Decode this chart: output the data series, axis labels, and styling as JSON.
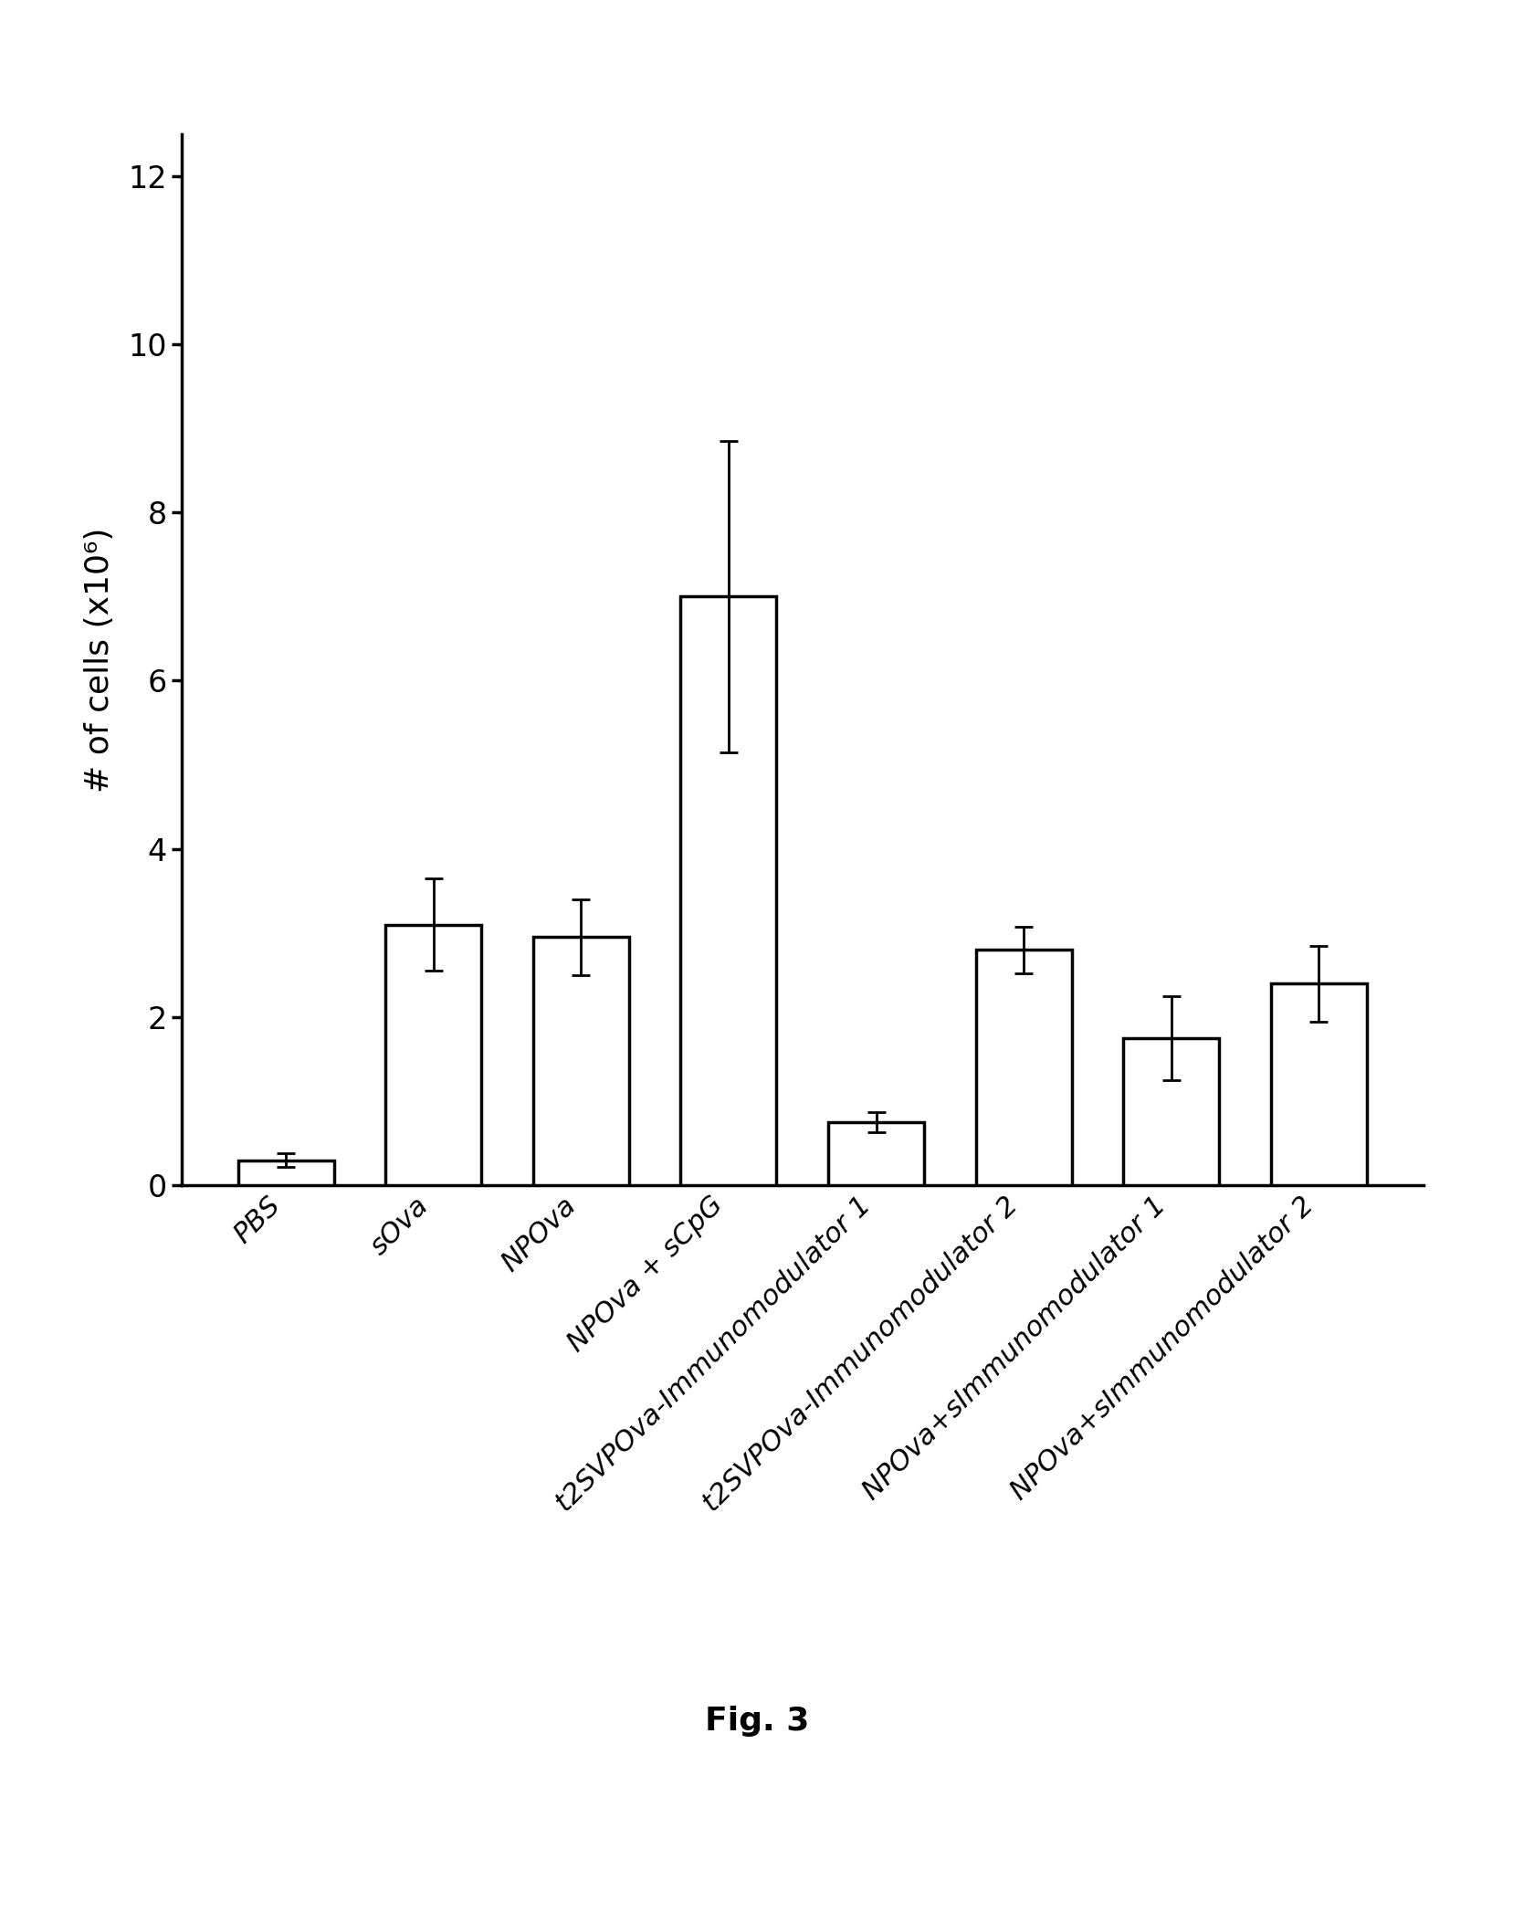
{
  "categories": [
    "PBS",
    "sOva",
    "NPOva",
    "NPOva + sCpG",
    "t2SVPOva-Immunomodulator 1",
    "t2SVPOva-Immunomodulator 2",
    "NPOva+sImmunomodulator 1",
    "NPOva+sImmunomodulator 2"
  ],
  "values": [
    0.3,
    3.1,
    2.95,
    7.0,
    0.75,
    2.8,
    1.75,
    2.4
  ],
  "errors": [
    0.08,
    0.55,
    0.45,
    1.85,
    0.12,
    0.28,
    0.5,
    0.45
  ],
  "bar_color": "#ffffff",
  "bar_edgecolor": "#000000",
  "bar_linewidth": 2.5,
  "error_color": "#000000",
  "error_linewidth": 2.0,
  "error_capsize": 7,
  "error_capthick": 2.0,
  "ylabel": "# of cells (x10⁶)",
  "ylabel_fontsize": 26,
  "yticks": [
    0,
    2,
    4,
    6,
    8,
    10,
    12
  ],
  "ylim": [
    0,
    12.5
  ],
  "ytick_fontsize": 24,
  "xtick_rotation": 45,
  "xtick_ha": "right",
  "xtick_fontsize": 22,
  "figure_caption": "Fig. 3",
  "caption_fontsize": 26,
  "background_color": "#ffffff",
  "bar_width": 0.65,
  "axis_linewidth": 2.5,
  "figure_width": 16.58,
  "figure_height": 20.94
}
